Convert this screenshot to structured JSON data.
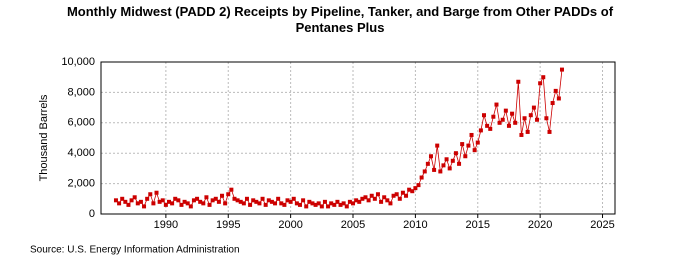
{
  "chart_data": {
    "type": "scatter",
    "title": "Monthly Midwest (PADD 2) Receipts by Pipeline, Tanker, and Barge from Other PADDs of Pentanes Plus",
    "y_label": "Thousand Barrels",
    "source": "Source: U.S. Energy Information Administration",
    "x": [
      1986,
      1986.25,
      1986.5,
      1986.75,
      1987,
      1987.25,
      1987.5,
      1987.75,
      1988,
      1988.25,
      1988.5,
      1988.75,
      1989,
      1989.25,
      1989.5,
      1989.75,
      1990,
      1990.25,
      1990.5,
      1990.75,
      1991,
      1991.25,
      1991.5,
      1991.75,
      1992,
      1992.25,
      1992.5,
      1992.75,
      1993,
      1993.25,
      1993.5,
      1993.75,
      1994,
      1994.25,
      1994.5,
      1994.75,
      1995,
      1995.25,
      1995.5,
      1995.75,
      1996,
      1996.25,
      1996.5,
      1996.75,
      1997,
      1997.25,
      1997.5,
      1997.75,
      1998,
      1998.25,
      1998.5,
      1998.75,
      1999,
      1999.25,
      1999.5,
      1999.75,
      2000,
      2000.25,
      2000.5,
      2000.75,
      2001,
      2001.25,
      2001.5,
      2001.75,
      2002,
      2002.25,
      2002.5,
      2002.75,
      2003,
      2003.25,
      2003.5,
      2003.75,
      2004,
      2004.25,
      2004.5,
      2004.75,
      2005,
      2005.25,
      2005.5,
      2005.75,
      2006,
      2006.25,
      2006.5,
      2006.75,
      2007,
      2007.25,
      2007.5,
      2007.75,
      2008,
      2008.25,
      2008.5,
      2008.75,
      2009,
      2009.25,
      2009.5,
      2009.75,
      2010,
      2010.25,
      2010.5,
      2010.75,
      2011,
      2011.25,
      2011.5,
      2011.75,
      2012,
      2012.25,
      2012.5,
      2012.75,
      2013,
      2013.25,
      2013.5,
      2013.75,
      2014,
      2014.25,
      2014.5,
      2014.75,
      2015,
      2015.25,
      2015.5,
      2015.75,
      2016,
      2016.25,
      2016.5,
      2016.75,
      2017,
      2017.25,
      2017.5,
      2017.75,
      2018,
      2018.25,
      2018.5,
      2018.75,
      2019,
      2019.25,
      2019.5,
      2019.75,
      2020,
      2020.25,
      2020.5,
      2020.75,
      2021,
      2021.25,
      2021.5,
      2021.75
    ],
    "series": [
      {
        "name": "Receipts",
        "color": "#cc0000",
        "values": [
          900,
          700,
          1000,
          800,
          600,
          900,
          1100,
          700,
          800,
          500,
          1000,
          1300,
          700,
          1400,
          800,
          900,
          600,
          800,
          700,
          1000,
          900,
          600,
          800,
          700,
          500,
          900,
          1000,
          800,
          700,
          1100,
          600,
          900,
          1000,
          800,
          1200,
          700,
          1300,
          1600,
          1000,
          900,
          800,
          700,
          1000,
          600,
          900,
          800,
          700,
          1000,
          600,
          900,
          800,
          700,
          1000,
          700,
          600,
          900,
          800,
          1000,
          700,
          600,
          900,
          500,
          800,
          700,
          600,
          700,
          500,
          800,
          500,
          700,
          600,
          800,
          600,
          700,
          500,
          800,
          700,
          900,
          800,
          1000,
          1100,
          900,
          1200,
          1000,
          1300,
          800,
          1100,
          900,
          700,
          1200,
          1300,
          1000,
          1400,
          1200,
          1600,
          1500,
          1700,
          1900,
          2400,
          2800,
          3300,
          3800,
          2900,
          4500,
          2800,
          3200,
          3600,
          3000,
          3500,
          4000,
          3300,
          4600,
          3800,
          4500,
          5200,
          4200,
          4700,
          5500,
          6500,
          5800,
          5600,
          6400,
          7200,
          6000,
          6200,
          6800,
          5800,
          6600,
          6000,
          8700,
          5200,
          6300,
          5400,
          6500,
          7000,
          6200,
          8600,
          9000,
          6300,
          5400,
          7300,
          8100,
          7600,
          9500
        ]
      }
    ],
    "xlim": [
      1984.8,
      2026
    ],
    "xticks": [
      1990,
      1995,
      2000,
      2005,
      2010,
      2015,
      2020,
      2025
    ],
    "ylim": [
      0,
      10000
    ],
    "yticks": [
      0,
      {
        "value": 2000,
        "label": "2,000"
      },
      {
        "value": 4000,
        "label": "4,000"
      },
      {
        "value": 6000,
        "label": "6,000"
      },
      {
        "value": 8000,
        "label": "8,000"
      },
      {
        "value": 10000,
        "label": "10,000"
      }
    ],
    "grid": true
  }
}
